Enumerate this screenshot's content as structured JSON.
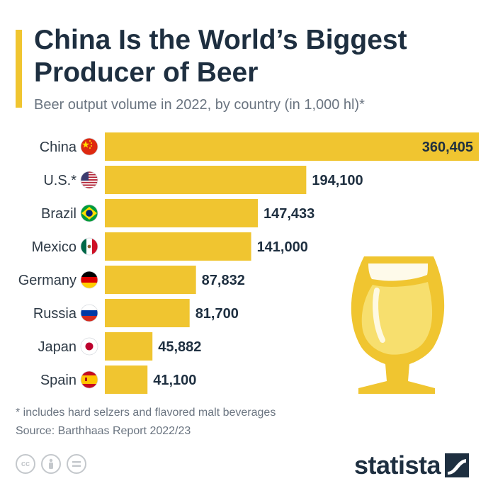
{
  "header": {
    "title": "China Is the World’s Biggest Producer of Beer",
    "subtitle": "Beer output volume in 2022, by country (in 1,000 hl)*"
  },
  "footer": {
    "footnote": "* includes hard selzers and flavored malt beverages",
    "source": "Source: Barthhaas Report 2022/23",
    "brand": "statista"
  },
  "colors": {
    "bar": "#f0c530",
    "label": "#2e3a46",
    "value": "#1e2f40",
    "glass": "#f7df6e",
    "glass_outline": "#f0c530"
  },
  "chart_data": {
    "type": "bar",
    "orientation": "horizontal",
    "categories": [
      "China",
      "U.S.*",
      "Brazil",
      "Mexico",
      "Germany",
      "Russia",
      "Japan",
      "Spain"
    ],
    "values": [
      360405,
      194100,
      147433,
      141000,
      87832,
      81700,
      45882,
      41100
    ],
    "value_labels": [
      "360,405",
      "194,100",
      "147,433",
      "141,000",
      "87,832",
      "81,700",
      "45,882",
      "41,100"
    ],
    "flags": [
      "china-flag-icon",
      "us-flag-icon",
      "brazil-flag-icon",
      "mexico-flag-icon",
      "germany-flag-icon",
      "russia-flag-icon",
      "japan-flag-icon",
      "spain-flag-icon"
    ],
    "grid": false,
    "legend": "none"
  }
}
